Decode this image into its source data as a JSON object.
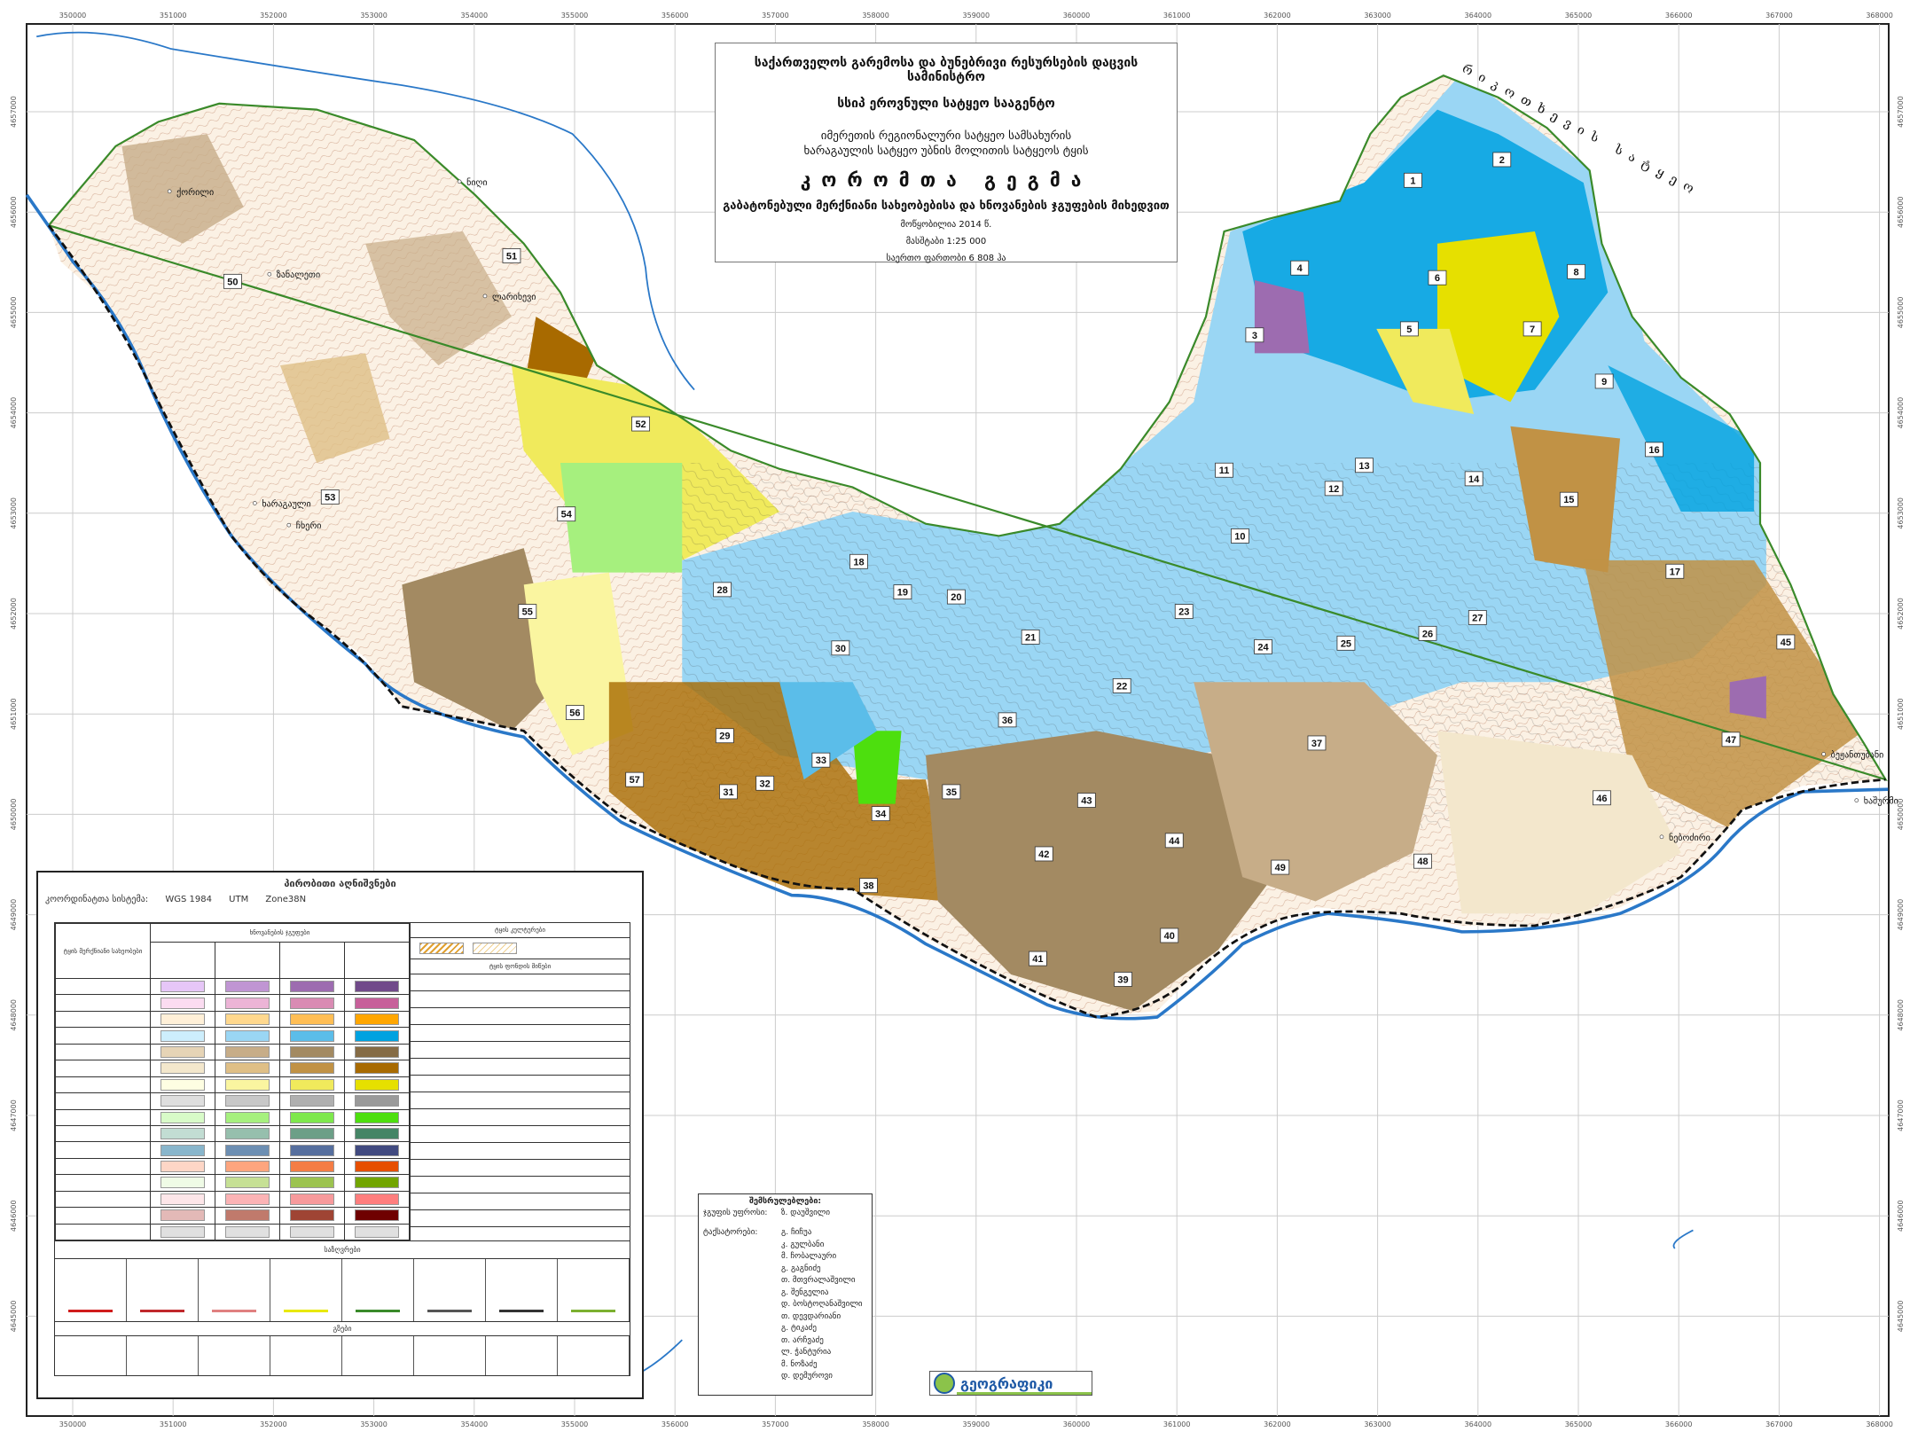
{
  "title": {
    "ministry": "საქართველოს გარემოსა და ბუნებრივი რესურსების დაცვის სამინისტრო",
    "agency": "სსიპ ეროვნული სატყეო სააგენტო",
    "service_line1": "იმერეთის რეგიონალური სატყეო სამსახურის",
    "service_line2": "ხარაგაულის სატყეო უბნის მოლითის სატყეოს ტყის",
    "map_name": "კორომთა გეგმა",
    "subtitle": "გაბატონებული მერქნიანი სახეობებისა და ხნოვანების ჯგუფების მიხედვით",
    "compiled": "მოწყობილია 2014 წ.",
    "scale": "მასშტაბი 1:25 000",
    "area": "საერთო ფართობი 6 808 ჰა"
  },
  "axes": {
    "x_ticks": [
      "350000",
      "351000",
      "352000",
      "353000",
      "354000",
      "355000",
      "356000",
      "357000",
      "358000",
      "359000",
      "360000",
      "361000",
      "362000",
      "363000",
      "364000",
      "365000",
      "366000",
      "367000",
      "368000"
    ],
    "y_ticks": [
      "4657000",
      "4656000",
      "4655000",
      "4654000",
      "4653000",
      "4652000",
      "4651000",
      "4650000",
      "4649000",
      "4648000",
      "4647000",
      "4646000",
      "4645000"
    ]
  },
  "map": {
    "compartments": [
      "1",
      "2",
      "3",
      "4",
      "5",
      "6",
      "7",
      "8",
      "9",
      "10",
      "11",
      "12",
      "13",
      "14",
      "15",
      "16",
      "17",
      "18",
      "19",
      "20",
      "21",
      "22",
      "23",
      "24",
      "25",
      "26",
      "27",
      "28",
      "29",
      "30",
      "31",
      "32",
      "33",
      "34",
      "35",
      "36",
      "37",
      "38",
      "39",
      "40",
      "41",
      "42",
      "43",
      "44",
      "45",
      "46",
      "47",
      "48",
      "49",
      "50",
      "51",
      "52",
      "53",
      "54",
      "55",
      "56",
      "57"
    ],
    "places": [
      "ქორილი",
      "ნიღი",
      "ზანალეთი",
      "ლარიხევი",
      "ხარაგაული",
      "ჩხერი",
      "ბეჟანთუბანი",
      "ნებოძირი",
      "ხაშურმი"
    ],
    "neighbor_label": "რიკოთხევის სატყეო",
    "colors": {
      "boundary": "#3a8a2a",
      "river": "#2a78c8",
      "railway": "#111111",
      "conifer_blue": "#5bbde9",
      "beech_brown": "#a38a62",
      "alder_yellow": "#f0ea5c"
    }
  },
  "legend": {
    "title": "პირობითი აღნიშვნები",
    "crs_label": "კოორდინატთა სისტემა:",
    "crs_datum": "WGS 1984",
    "crs_proj": "UTM",
    "crs_zone": "Zone38N",
    "species_header": "ტყის მერქნიანი სახეობები",
    "age_header": "ხნოვანების ჯგუფები",
    "plantations_header": "ტყის კულტურები",
    "forest_land_header": "ტყის ფონდის მიწები",
    "boundaries_header": "საზღვრები",
    "roads_header": "გზები",
    "swatches": [
      [
        "#e6c6f7",
        "#c095d3",
        "#9d6cb0",
        "#714a8a"
      ],
      [
        "#fbdcf1",
        "#ecb4d6",
        "#d98bb3",
        "#c7609a"
      ],
      [
        "#fff0d8",
        "#ffd88e",
        "#ffbe55",
        "#ffa600"
      ],
      [
        "#cdeefc",
        "#9ad6f4",
        "#5bbde9",
        "#00a2e0"
      ],
      [
        "#e6d4b6",
        "#c7ad88",
        "#a38a62",
        "#856b45"
      ],
      [
        "#f3e7cc",
        "#dfbf86",
        "#c19245",
        "#a86a00"
      ],
      [
        "#fefee2",
        "#faf5a0",
        "#f0ea5c",
        "#e6e000"
      ],
      [
        "#dedede",
        "#c8c8c8",
        "#b0b0b0",
        "#9a9a9a"
      ],
      [
        "#d8fbc8",
        "#a6f07e",
        "#7ee84c",
        "#4ddf0e"
      ],
      [
        "#c2ddd3",
        "#96bfad",
        "#6c9f87",
        "#458566"
      ],
      [
        "#89b6cc",
        "#6d8fb3",
        "#566f9e",
        "#414a80"
      ],
      [
        "#fdd6c6",
        "#fda57e",
        "#f47d45",
        "#e64f00"
      ],
      [
        "#effbe6",
        "#c6e095",
        "#9cc350",
        "#72a500"
      ],
      [
        "#fde6e9",
        "#fbb3b5",
        "#f79a9c",
        "#fe7e7e"
      ],
      [
        "#e3b9b7",
        "#c07a6c",
        "#9f4434",
        "#6f0000"
      ],
      [
        "#e0e0e0",
        "#e0e0e0",
        "#e0e0e0",
        "#e0e0e0"
      ]
    ],
    "boundary_line_colors": [
      "#d01c1c",
      "#c0282c",
      "#e08080",
      "#e8e800",
      "#3a8a2a",
      "#555555",
      "#333333",
      "#7cb030"
    ]
  },
  "credits": {
    "title": "შემსრულებლები:",
    "head_label": "ჯგუფის უფროსი:",
    "head_name": "ზ. დაუშვილი",
    "taxators_label": "ტაქსატორები:",
    "taxators": [
      "გ. ჩიჩუა",
      "კ. გულბანი",
      "მ. ჩობალაური",
      "გ. გაგნიძე",
      "თ. მთვრალაშვილი",
      "გ. შენგელია",
      "დ. ბოსტოღანაშვილი",
      "თ. დევდარიანი",
      "გ. ტიკაძე",
      "თ. არჩვაძე",
      "ლ. ჭანტურია",
      "მ. ნოზაძე",
      "დ. დემუროვი"
    ]
  },
  "logo": {
    "text": "გეოგრაფიკი"
  }
}
